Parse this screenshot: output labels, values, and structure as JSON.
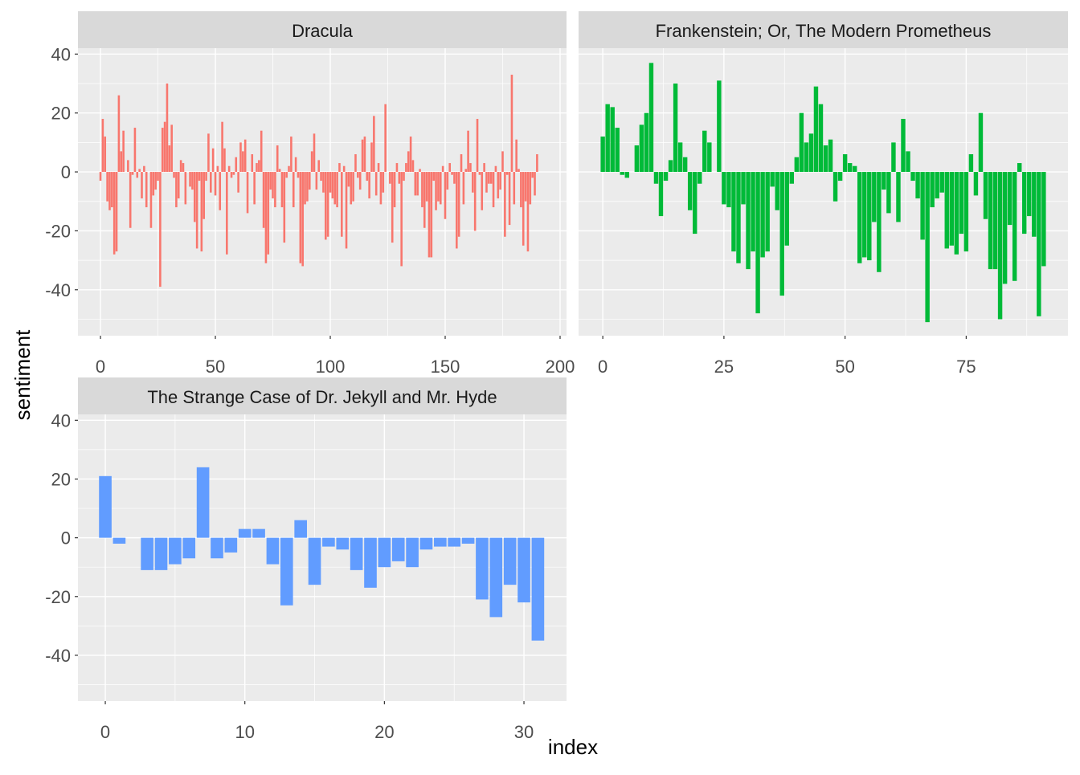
{
  "chart_data": {
    "type": "bar",
    "xlabel": "index",
    "ylabel": "sentiment",
    "ylim": [
      -55.6,
      42
    ],
    "yticks": [
      -40,
      -20,
      0,
      20,
      40
    ],
    "grid": true,
    "legend": "none",
    "facets": [
      {
        "title": "Dracula",
        "color": "#F8766D",
        "xlim": [
          -9.8,
          202.8
        ],
        "xticks": [
          0,
          50,
          100,
          150,
          200
        ],
        "values": [
          -3,
          18,
          12,
          -10,
          -13,
          -12,
          -28,
          -27,
          26,
          7,
          14,
          0,
          4,
          -19,
          -1,
          15,
          -2,
          1,
          -9,
          2,
          -12,
          0,
          -19,
          -8,
          -6,
          -3,
          -39,
          15,
          17,
          30,
          9,
          16,
          -2,
          -12,
          -9,
          4,
          3,
          -11,
          0,
          -5,
          -6,
          -17,
          -26,
          -3,
          -27,
          -16,
          -3,
          13,
          -7,
          8,
          -8,
          2,
          -13,
          17,
          8,
          -28,
          2,
          -2,
          -1,
          5,
          -7,
          10,
          7,
          11,
          -14,
          0,
          6,
          -11,
          3,
          4,
          14,
          -19,
          -31,
          -28,
          -6,
          -9,
          -12,
          9,
          1,
          -12,
          -24,
          -2,
          2,
          12,
          -12,
          5,
          -2,
          -31,
          -32,
          -11,
          -10,
          -6,
          7,
          13,
          -6,
          4,
          -3,
          -7,
          -23,
          -22,
          -7,
          -9,
          -11,
          -12,
          3,
          -22,
          2,
          -26,
          -5,
          -11,
          -10,
          6,
          -2,
          -6,
          11,
          12,
          -3,
          -9,
          10,
          19,
          -8,
          3,
          -11,
          -7,
          23,
          0,
          -4,
          -24,
          -12,
          3,
          -4,
          -32,
          -3,
          3,
          7,
          12,
          4,
          -8,
          -8,
          1,
          -12,
          -19,
          -10,
          -29,
          -29,
          -3,
          -13,
          -10,
          -11,
          2,
          -16,
          -6,
          3,
          -1,
          -4,
          -26,
          -22,
          6,
          -11,
          1,
          14,
          3,
          -7,
          -20,
          18,
          -1,
          -13,
          3,
          -7,
          -4,
          -4,
          -12,
          2,
          -9,
          -6,
          7,
          -22,
          -1,
          -18,
          33,
          -11,
          11,
          1,
          -12,
          -25,
          -10,
          -27,
          -11,
          -2,
          -8,
          6
        ]
      },
      {
        "title": "Frankenstein; Or, The Modern Prometheus",
        "color": "#00BA38",
        "xlim": [
          -5,
          96
        ],
        "xticks": [
          0,
          25,
          50,
          75
        ],
        "values": [
          12,
          23,
          22,
          15,
          -1,
          -2,
          0,
          9,
          16,
          20,
          37,
          -4,
          -15,
          -3,
          4,
          30,
          10,
          5,
          -13,
          -21,
          -4,
          14,
          10,
          0,
          31,
          -11,
          -12,
          -27,
          -31,
          -11,
          -33,
          -27,
          -48,
          -29,
          -27,
          -5,
          -13,
          -42,
          -25,
          -4,
          5,
          20,
          10,
          13,
          29,
          23,
          9,
          11,
          -10,
          -3,
          6,
          3,
          2,
          -31,
          -29,
          -30,
          -17,
          -34,
          -6,
          -14,
          10,
          -17,
          18,
          7,
          -3,
          -9,
          -23,
          -51,
          -12,
          -9,
          -7,
          -26,
          -25,
          -28,
          -21,
          -27,
          6,
          -8,
          20,
          -16,
          -33,
          -33,
          -50,
          -38,
          -18,
          -37,
          3,
          -21,
          -15,
          -22,
          -49,
          -32
        ]
      },
      {
        "title": "The Strange Case of Dr. Jekyll and Mr. Hyde",
        "color": "#619CFF",
        "xlim": [
          -1.96,
          33.05
        ],
        "xticks": [
          0,
          10,
          20,
          30
        ],
        "values": [
          21,
          -2,
          0,
          -11,
          -11,
          -9,
          -7,
          24,
          -7,
          -5,
          3,
          3,
          -9,
          -23,
          6,
          -16,
          -3,
          -4,
          -11,
          -17,
          -10,
          -8,
          -10,
          -4,
          -3,
          -3,
          -2,
          -21,
          -27,
          -16,
          -22,
          -35
        ]
      }
    ]
  }
}
